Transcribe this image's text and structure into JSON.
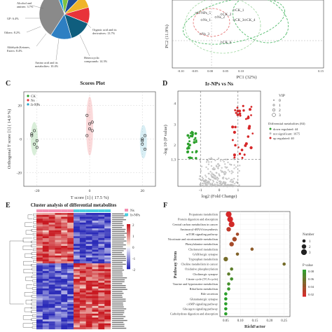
{
  "panels": {
    "C": "C",
    "D": "D",
    "E": "E",
    "F": "F"
  },
  "colors": {
    "ck": "#2ca02c",
    "ns": "#e8333a",
    "irnps": "#2aa7c9",
    "pca_ellipse": "#3db35a",
    "pca_ellipse2": "#9ed79f",
    "pca_ellipse_red": "#e56b6b",
    "volcano_gray": "#bdbdbd",
    "volcano_green": "#2ca02c",
    "volcano_red": "#d62728",
    "heat_high": "#c8102e",
    "heat_low": "#2b2bb8",
    "heat_mid": "#ffffff",
    "legend_pink": "#f48fb1",
    "legend_cyan": "#4dd0e1",
    "bubble_low": "#d62728",
    "bubble_high": "#2ca02c"
  },
  "chart_data": [
    {
      "id": "pie",
      "type": "pie",
      "labels_visible": [
        "Alcohol and amines: 3.7%",
        "GP: 6.4%",
        "Others: 8.2%",
        "Aldehyde,Ketones, Esters: 8.4%",
        "Amino acid and its metabolites: 10.4%",
        "Organic acid and its derivatives: 13.7%",
        "Heterocyclic compounds: 14.3%"
      ],
      "slices": [
        {
          "label": "Alcohol and amines",
          "value": 3.7,
          "color": "#1f9bd7"
        },
        {
          "label": "GP",
          "value": 6.4,
          "color": "#7fc241"
        },
        {
          "label": "Others",
          "value": 8.2,
          "color": "#1f4e96"
        },
        {
          "label": "Aldehyde,Ketones, Esters",
          "value": 8.4,
          "color": "#f0b429"
        },
        {
          "label": "Amino acid and its metabolites",
          "value": 10.4,
          "color": "#e8333a"
        },
        {
          "label": "Heterocyclic compounds",
          "value": 14.3,
          "color": "#0f5e7e"
        },
        {
          "label": "Organic acid and its derivatives",
          "value": 13.7,
          "color": "#2e7fc2"
        },
        {
          "label": "",
          "value": 34.9,
          "color": "#8a8a8a"
        }
      ]
    },
    {
      "id": "pca",
      "type": "scatter",
      "xlabel": "PC1 (32%)",
      "ylabel": "PC2 (11.9%)",
      "xticks": [
        "-0.10",
        "-0.05",
        "0.00",
        "0.05",
        "0.10",
        "0.15"
      ],
      "points": [
        {
          "label": "Ir-NPs_5",
          "x": 0.01,
          "y": 0.055
        },
        {
          "label": "CK_1",
          "x": 0.06,
          "y": 0.055
        },
        {
          "label": "Ns_2",
          "x": 0.0,
          "y": 0.045
        },
        {
          "label": "CK_3",
          "x": 0.08,
          "y": 0.03
        },
        {
          "label": "CK_4",
          "x": 0.1,
          "y": 0.02
        },
        {
          "label": "Ns_3",
          "x": 0.0,
          "y": 0.01
        },
        {
          "label": "CK_6",
          "x": 0.07,
          "y": -0.03
        }
      ],
      "visible_text": [
        "Ir-NPs_5",
        "CK_1",
        "CK_2",
        "Ns_1",
        "CK_3",
        "CK_4",
        "Ns_3",
        "CK_6",
        "Ns_2"
      ]
    },
    {
      "id": "scores",
      "type": "scatter",
      "title": "Scores Plot",
      "xlabel": "T score [1] ( 17.5 %)",
      "ylabel": "Orthogonal T score [1] ( 14.9 %)",
      "xticks": [
        -20,
        0,
        20
      ],
      "yticks": [
        -20,
        0,
        20
      ],
      "xlim": [
        -25,
        25
      ],
      "ylim": [
        -28,
        28
      ],
      "legend": [
        "CK",
        "Ns",
        "Ir-NPs"
      ],
      "series": [
        {
          "name": "CK",
          "color": "#2ca02c",
          "x": [
            -21,
            -22,
            -20,
            -21,
            -20,
            -22
          ],
          "y": [
            5,
            2,
            -1,
            -3,
            -5,
            3
          ]
        },
        {
          "name": "Ns",
          "color": "#e8333a",
          "x": [
            -1,
            1,
            0,
            -1,
            1,
            0
          ],
          "y": [
            14,
            10,
            6,
            2,
            5,
            9
          ]
        },
        {
          "name": "Ir-NPs",
          "color": "#2aa7c9",
          "x": [
            20,
            21,
            20,
            21,
            20
          ],
          "y": [
            -1,
            2,
            -3,
            -6,
            0
          ]
        }
      ]
    },
    {
      "id": "volcano",
      "type": "scatter",
      "title": "Ir-NPs vs Ns",
      "xlabel": "log2 (Fold Change)",
      "ylabel": "-log 10 (P value)",
      "yticks": [
        1.3,
        2,
        3,
        4
      ],
      "xticks": [
        -1,
        0,
        1
      ],
      "xlim": [
        -2.2,
        2.2
      ],
      "ylim": [
        0,
        4.6
      ],
      "legend": {
        "vip_title": "VIP",
        "vip_values": [
          "0",
          "1",
          "2",
          "3"
        ],
        "diff_title": "Differential metabolites (84)",
        "entries": [
          "down regulated: 44",
          "not significant: 1675",
          "up regulated: 40"
        ]
      }
    },
    {
      "id": "heatmap",
      "type": "heatmap",
      "title": "Cluster analysis of differential metabolites",
      "legend": [
        "Ns",
        "Ir-NPs"
      ],
      "scale_ticks": [
        "2",
        "1",
        "0",
        "-1",
        "-2"
      ],
      "rows": 60,
      "cols": 12
    },
    {
      "id": "enrichment",
      "type": "scatter",
      "xlabel": "RichFactor",
      "ylabel": "Pathway Term",
      "xticks": [
        "0.05",
        "0.10",
        "0.15",
        "0.20",
        "0.25"
      ],
      "xlim": [
        0.03,
        0.27
      ],
      "size_legend_title": "Number",
      "size_legend": [
        "1",
        "2",
        "3"
      ],
      "color_legend_title": "P value",
      "color_legend_ticks": [
        "0.08",
        "0.06",
        "0.04",
        "0.02"
      ],
      "terms": [
        {
          "name": "Propanoate metabolism",
          "x": 0.06,
          "n": 3,
          "p": 0.01
        },
        {
          "name": "Protein digestion and absorption",
          "x": 0.065,
          "n": 3,
          "p": 0.01
        },
        {
          "name": "Central carbon metabolism in cancer",
          "x": 0.07,
          "n": 3,
          "p": 0.012
        },
        {
          "name": "Aminoacyl-tRNA biosynthesis",
          "x": 0.06,
          "n": 2,
          "p": 0.02
        },
        {
          "name": "mTOR signaling pathway",
          "x": 0.09,
          "n": 1,
          "p": 0.03
        },
        {
          "name": "Nicotinate and nicotinamide metabolism",
          "x": 0.08,
          "n": 2,
          "p": 0.03
        },
        {
          "name": "Phenylalanine metabolism",
          "x": 0.07,
          "n": 2,
          "p": 0.03
        },
        {
          "name": "Cholesterol metabolism",
          "x": 0.14,
          "n": 1,
          "p": 0.04
        },
        {
          "name": "GABAergic synapse",
          "x": 0.09,
          "n": 1,
          "p": 0.045
        },
        {
          "name": "Tryptophan metabolism",
          "x": 0.05,
          "n": 2,
          "p": 0.05
        },
        {
          "name": "Choline metabolism in cancer",
          "x": 0.25,
          "n": 1,
          "p": 0.05
        },
        {
          "name": "Oxidative phosphorylation",
          "x": 0.07,
          "n": 1,
          "p": 0.06
        },
        {
          "name": "Cholinergic synapse",
          "x": 0.06,
          "n": 1,
          "p": 0.06
        },
        {
          "name": "Citrate cycle (TCA cycle)",
          "x": 0.07,
          "n": 1,
          "p": 0.07
        },
        {
          "name": "Taurine and hypotaurine metabolism",
          "x": 0.06,
          "n": 1,
          "p": 0.07
        },
        {
          "name": "Riboflavin metabolism",
          "x": 0.06,
          "n": 1,
          "p": 0.075
        },
        {
          "name": "Bile secretion",
          "x": 0.05,
          "n": 1,
          "p": 0.08
        },
        {
          "name": "Glutamatergic synapse",
          "x": 0.05,
          "n": 1,
          "p": 0.08
        },
        {
          "name": "cAMP signaling pathway",
          "x": 0.05,
          "n": 1,
          "p": 0.08
        },
        {
          "name": "Glucagon signaling pathway",
          "x": 0.05,
          "n": 1,
          "p": 0.08
        },
        {
          "name": "Carbohydrate digestion and absorption",
          "x": 0.05,
          "n": 1,
          "p": 0.08
        }
      ]
    }
  ]
}
